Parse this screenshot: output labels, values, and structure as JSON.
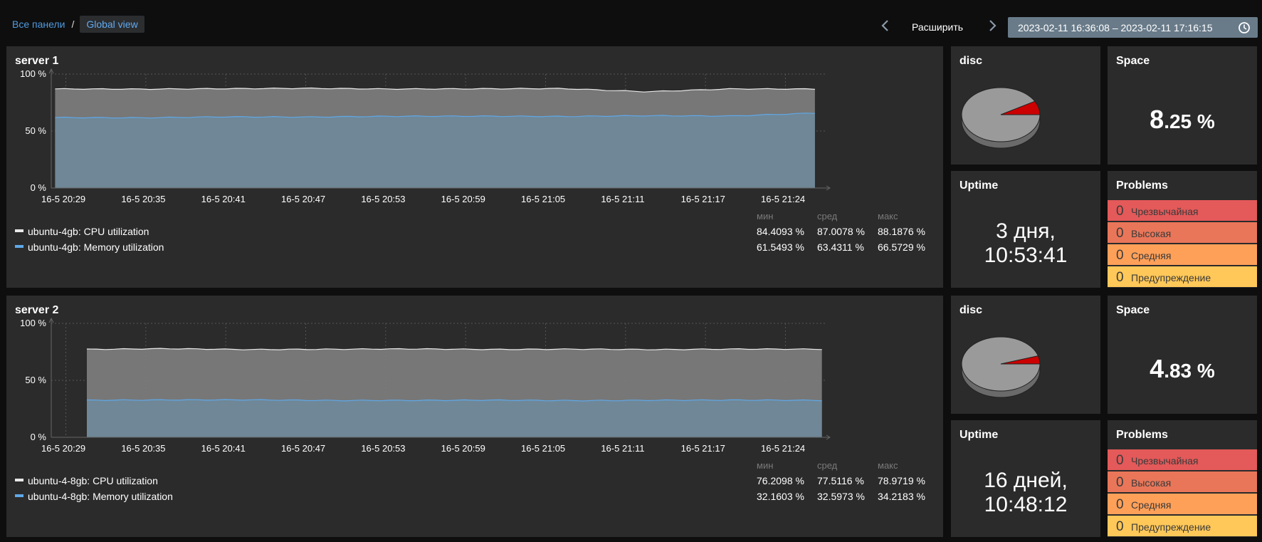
{
  "header": {
    "breadcrumb_root": "Все панели",
    "breadcrumb_separator": "/",
    "breadcrumb_current": "Global view",
    "expand_label": "Расширить",
    "time_range": "2023-02-11 16:36:08 – 2023-02-11 17:16:15"
  },
  "colors": {
    "background": "#0e0e0e",
    "panel": "#2b2b2b",
    "cpu_line": "#e8e8e8",
    "cpu_fill": "#7b7b7b",
    "mem_line": "#5fa8e8",
    "mem_fill": "#6f8797",
    "pie_main": "#9a9a9a",
    "pie_slice": "#cc0000",
    "severity_disaster": "#e45959",
    "severity_high": "#e97659",
    "severity_average": "#ffa059",
    "severity_warning": "#ffc859"
  },
  "servers": [
    {
      "title": "server 1",
      "y_ticks": [
        "100 %",
        "50 %",
        "0 %"
      ],
      "x_ticks": [
        "16-5 20:29",
        "16-5 20:35",
        "16-5 20:41",
        "16-5 20:47",
        "16-5 20:53",
        "16-5 20:59",
        "16-5 21:05",
        "16-5 21:11",
        "16-5 21:17",
        "16-5 21:24"
      ],
      "stat_headers": {
        "min": "мин",
        "avg": "сред",
        "max": "макс"
      },
      "legend": [
        {
          "name": "ubuntu-4gb: CPU utilization",
          "min": "84.4093 %",
          "avg": "87.0078 %",
          "max": "88.1876 %"
        },
        {
          "name": "ubuntu-4gb: Memory utilization",
          "min": "61.5493 %",
          "avg": "63.4311 %",
          "max": "66.5729 %"
        }
      ],
      "disc_title": "disc",
      "disc_used_fraction": 0.0825,
      "space_title": "Space",
      "space_int": "8",
      "space_frac": ".25",
      "space_unit": " %",
      "uptime_title": "Uptime",
      "uptime_line1": "3 дня,",
      "uptime_line2": "10:53:41",
      "problems_title": "Problems",
      "problems": [
        {
          "count": "0",
          "label": "Чрезвычайная"
        },
        {
          "count": "0",
          "label": "Высокая"
        },
        {
          "count": "0",
          "label": "Средняя"
        },
        {
          "count": "0",
          "label": "Предупреждение"
        }
      ]
    },
    {
      "title": "server 2",
      "y_ticks": [
        "100 %",
        "50 %",
        "0 %"
      ],
      "x_ticks": [
        "16-5 20:29",
        "16-5 20:35",
        "16-5 20:41",
        "16-5 20:47",
        "16-5 20:53",
        "16-5 20:59",
        "16-5 21:05",
        "16-5 21:11",
        "16-5 21:17",
        "16-5 21:24"
      ],
      "stat_headers": {
        "min": "мин",
        "avg": "сред",
        "max": "макс"
      },
      "legend": [
        {
          "name": "ubuntu-4-8gb: CPU utilization",
          "min": "76.2098 %",
          "avg": "77.5116 %",
          "max": "78.9719 %"
        },
        {
          "name": "ubuntu-4-8gb: Memory utilization",
          "min": "32.1603 %",
          "avg": "32.5973 %",
          "max": "34.2183 %"
        }
      ],
      "disc_title": "disc",
      "disc_used_fraction": 0.0483,
      "space_title": "Space",
      "space_int": "4",
      "space_frac": ".83",
      "space_unit": " %",
      "uptime_title": "Uptime",
      "uptime_line1": "16 дней,",
      "uptime_line2": "10:48:12",
      "problems_title": "Problems",
      "problems": [
        {
          "count": "0",
          "label": "Чрезвычайная"
        },
        {
          "count": "0",
          "label": "Высокая"
        },
        {
          "count": "0",
          "label": "Средняя"
        },
        {
          "count": "0",
          "label": "Предупреждение"
        }
      ]
    }
  ],
  "chart_data": [
    {
      "type": "area",
      "title": "server 1",
      "ylim": [
        0,
        100
      ],
      "x": [
        "16-5 20:29",
        "16-5 20:35",
        "16-5 20:41",
        "16-5 20:47",
        "16-5 20:53",
        "16-5 20:59",
        "16-5 21:05",
        "16-5 21:11",
        "16-5 21:17",
        "16-5 21:24"
      ],
      "series": [
        {
          "name": "ubuntu-4gb: CPU utilization",
          "values": [
            87.0,
            86.8,
            87.2,
            87.5,
            86.9,
            87.1,
            87.3,
            84.5,
            87.0,
            86.9
          ]
        },
        {
          "name": "ubuntu-4gb: Memory utilization",
          "values": [
            61.9,
            61.6,
            62.5,
            62.3,
            63.0,
            63.1,
            62.8,
            63.5,
            63.2,
            65.8
          ]
        }
      ]
    },
    {
      "type": "area",
      "title": "server 2",
      "ylim": [
        0,
        100
      ],
      "x": [
        "16-5 20:29",
        "16-5 20:35",
        "16-5 20:41",
        "16-5 20:47",
        "16-5 20:53",
        "16-5 20:59",
        "16-5 21:05",
        "16-5 21:11",
        "16-5 21:17",
        "16-5 21:24"
      ],
      "series": [
        {
          "name": "ubuntu-4-8gb: CPU utilization",
          "values": [
            77.2,
            77.8,
            77.0,
            77.3,
            77.6,
            77.1,
            77.4,
            77.0,
            77.5,
            77.3
          ]
        },
        {
          "name": "ubuntu-4-8gb: Memory utilization",
          "values": [
            32.5,
            32.8,
            32.9,
            32.3,
            32.4,
            32.6,
            32.2,
            32.5,
            32.7,
            32.4
          ]
        }
      ]
    }
  ]
}
